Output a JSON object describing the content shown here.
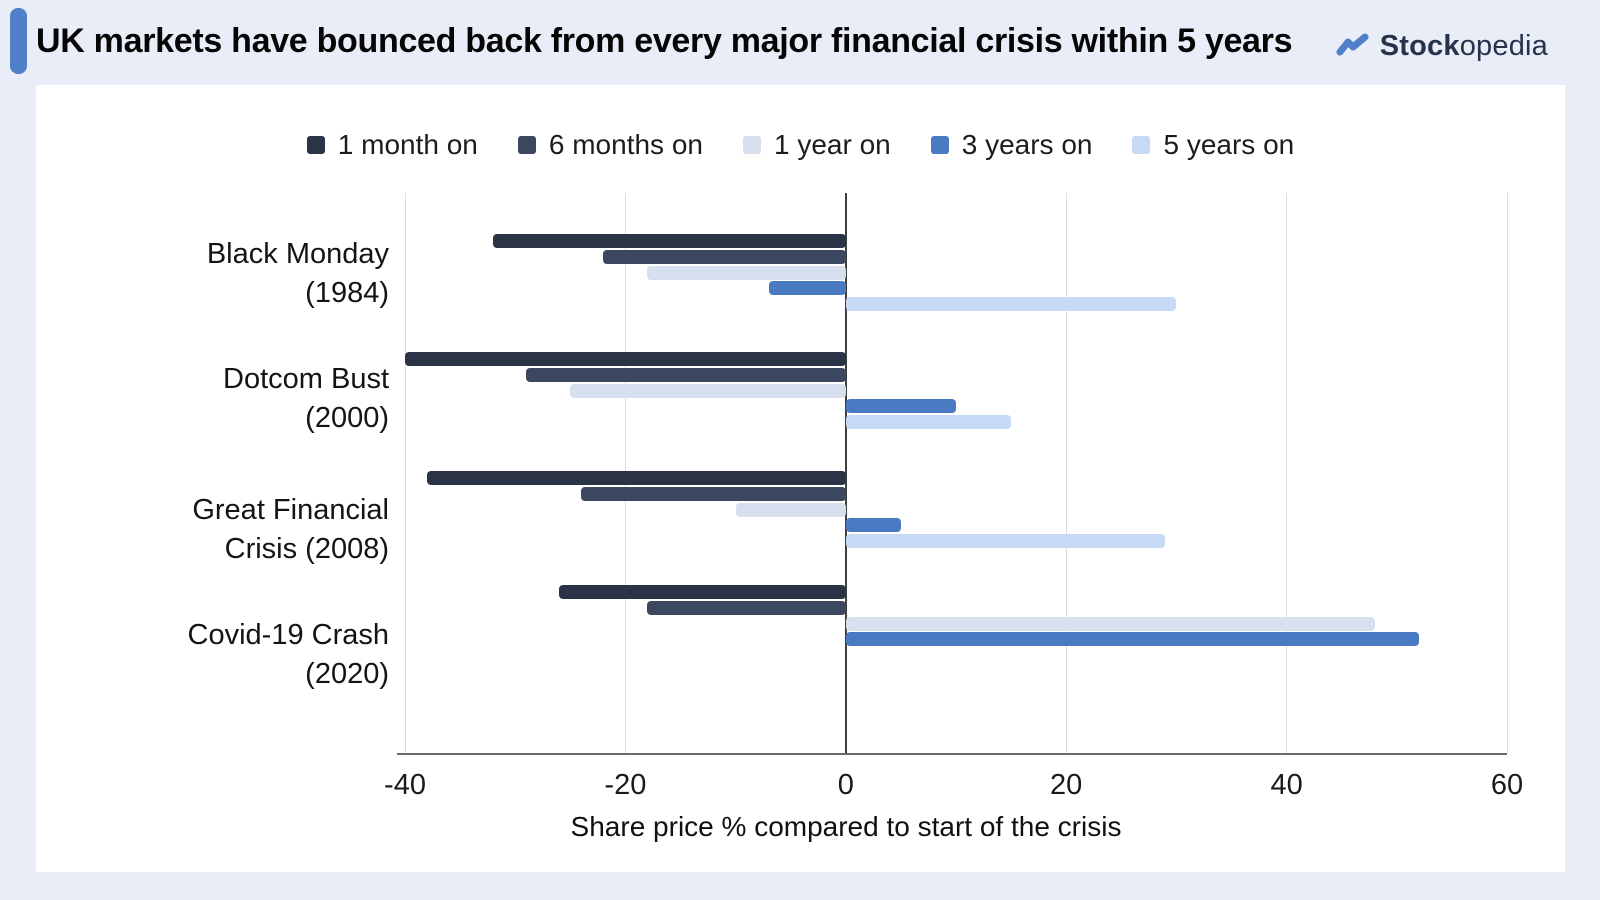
{
  "header": {
    "title": "UK markets have bounced back from every major financial crisis within 5 years",
    "brand": {
      "icon": "trend-zigzag-icon",
      "bold": "Stock",
      "regular": "opedia"
    }
  },
  "colors": {
    "page_bg": "#e9edf7",
    "card_bg": "#ffffff",
    "accent": "#4f80c9",
    "gridline": "#dcdcdc",
    "zero_line": "#3f3f3f",
    "axis_line": "#6a6a6a"
  },
  "chart_data": {
    "type": "bar",
    "orientation": "horizontal",
    "title": "",
    "xlabel": "Share price % compared to start of the crisis",
    "xlim": [
      -40,
      60
    ],
    "xticks": [
      -40,
      -20,
      0,
      20,
      40,
      60
    ],
    "grid": true,
    "legend_position": "top",
    "categories": [
      "Black Monday\n(1984)",
      "Dotcom Bust\n(2000)",
      "Great Financial\nCrisis (2008)",
      "Covid-19 Crash\n(2020)"
    ],
    "series": [
      {
        "name": "1 month on",
        "color": "#2b3446",
        "values": [
          -32,
          -40,
          -38,
          -26
        ]
      },
      {
        "name": "6 months on",
        "color": "#3b4860",
        "values": [
          -22,
          -29,
          -24,
          -18
        ]
      },
      {
        "name": "1 year on",
        "color": "#d8dfee",
        "values": [
          -18,
          -25,
          -10,
          48
        ]
      },
      {
        "name": "3 years on",
        "color": "#4a7ac1",
        "values": [
          -7,
          10,
          5,
          52
        ]
      },
      {
        "name": "5 years on",
        "color": "#c6d9f5",
        "values": [
          30,
          15,
          29,
          null
        ]
      }
    ]
  }
}
